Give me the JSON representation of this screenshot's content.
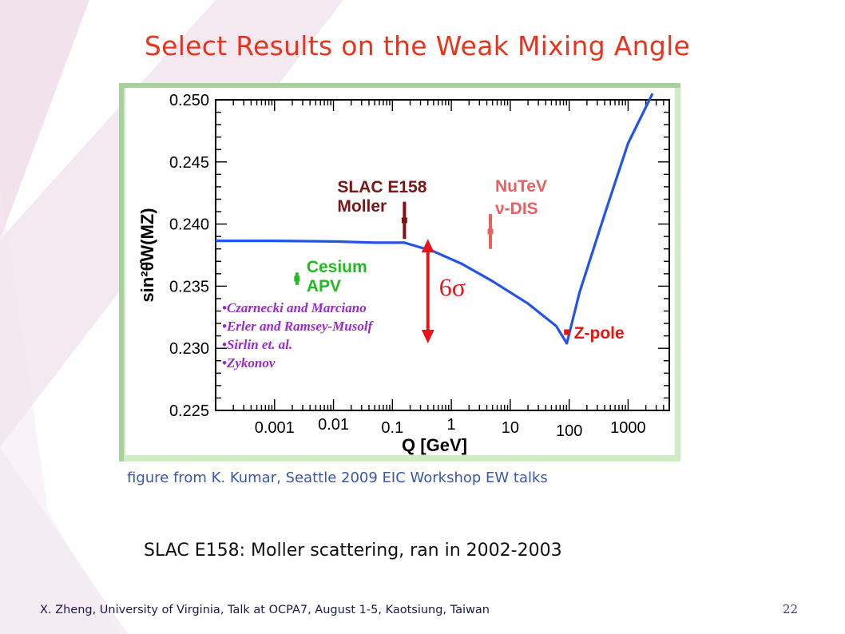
{
  "slide": {
    "title": "Select Results on the Weak Mixing Angle",
    "caption": "figure from K. Kumar, Seattle 2009 EIC Workshop EW talks",
    "subtitle": "SLAC E158: Moller scattering, ran in 2002-2003",
    "footer": "X. Zheng, University of Virginia,  Talk at OCPA7, August 1-5, Kaotsiung, Taiwan",
    "page_number": "22"
  },
  "chart_data": {
    "type": "line",
    "title": "",
    "xlabel": "Q [GeV]",
    "ylabel": "sin²θ̂W(MZ)",
    "x_scale": "log",
    "xlim": [
      0.0001,
      5000
    ],
    "ylim": [
      0.225,
      0.25
    ],
    "x_tick_labels": [
      {
        "value": 0.001,
        "label": "0.001"
      },
      {
        "value": 0.01,
        "label": "0.01"
      },
      {
        "value": 0.1,
        "label": "0.1"
      },
      {
        "value": 1,
        "label": "1"
      },
      {
        "value": 10,
        "label": "10"
      },
      {
        "value": 100,
        "label": "100"
      },
      {
        "value": 1000,
        "label": "1000"
      }
    ],
    "y_tick_labels": [
      {
        "value": 0.225,
        "label": "0.225"
      },
      {
        "value": 0.23,
        "label": "0.230"
      },
      {
        "value": 0.235,
        "label": "0.235"
      },
      {
        "value": 0.24,
        "label": "0.240"
      },
      {
        "value": 0.245,
        "label": "0.245"
      },
      {
        "value": 0.25,
        "label": "0.250"
      }
    ],
    "theory_curve": {
      "color": "#2255e6",
      "x": [
        0.0001,
        0.001,
        0.01,
        0.05,
        0.16,
        0.5,
        1.5,
        5,
        20,
        60,
        91.2,
        150,
        400,
        1000,
        2600
      ],
      "y": [
        0.23865,
        0.23865,
        0.2386,
        0.2385,
        0.2385,
        0.2378,
        0.2368,
        0.2354,
        0.2336,
        0.2318,
        0.2304,
        0.2345,
        0.2408,
        0.2465,
        0.2505
      ]
    },
    "measurements": [
      {
        "name": "Cesium APV",
        "label_lines": [
          "Cesium",
          "APV"
        ],
        "color": "#22bb22",
        "x": 0.0024,
        "y": 0.2356,
        "y_low": 0.2351,
        "y_high": 0.2361
      },
      {
        "name": "SLAC E158 Moller",
        "label_lines": [
          "SLAC E158",
          "Moller"
        ],
        "color": "#7a1416",
        "x": 0.16,
        "y": 0.2403,
        "y_low": 0.2388,
        "y_high": 0.2418
      },
      {
        "name": "NuTeV ν-DIS",
        "label_lines": [
          "NuTeV",
          "ν-DIS"
        ],
        "color": "#e86060",
        "x": 4.6,
        "y": 0.2394,
        "y_low": 0.238,
        "y_high": 0.2408
      },
      {
        "name": "Z-pole",
        "label_lines": [
          "Z-pole"
        ],
        "color": "#e8140c",
        "x": 91.2,
        "y": 0.2313,
        "y_low": 0.2312,
        "y_high": 0.2314
      }
    ],
    "six_sigma_arrow": {
      "label": "6σ",
      "color": "#e8141c",
      "x": 0.4,
      "y_low": 0.2304,
      "y_high": 0.2388
    },
    "theory_references": [
      "•Czarnecki and Marciano",
      "•Erler and Ramsey-Musolf",
      "•Sirlin et. al.",
      "•Zykonov"
    ],
    "grid": false
  },
  "colors": {
    "title": "#e8341c",
    "caption": "#3b57a8",
    "frame": "#cfecc4",
    "decor_stripe": "#f1e2ec"
  }
}
